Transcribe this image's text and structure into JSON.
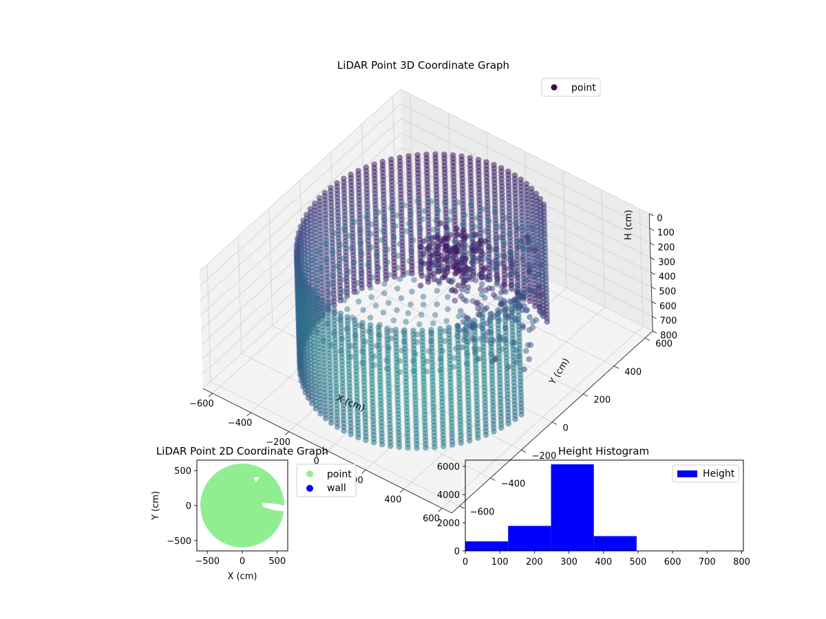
{
  "chart_data": [
    {
      "type": "scatter",
      "subtype": "3d",
      "title": "LiDAR Point 3D Coordinate Graph",
      "xlabel": "X (cm)",
      "ylabel": "Y (cm)",
      "zlabel": "H (cm)",
      "xlim": [
        -650,
        650
      ],
      "ylim": [
        -650,
        650
      ],
      "zlim": [
        0,
        800
      ],
      "z_inverted": true,
      "x_ticks": [
        "−600",
        "−400",
        "−200",
        "0",
        "200",
        "400",
        "600"
      ],
      "y_ticks": [
        "−600",
        "−400",
        "−200",
        "0",
        "200",
        "400",
        "600"
      ],
      "z_ticks": [
        "0",
        "100",
        "200",
        "300",
        "400",
        "500",
        "600",
        "700",
        "800"
      ],
      "grid": true,
      "legend": {
        "placement": "top-right",
        "entries": [
          {
            "label": "point",
            "color": "#440154"
          }
        ]
      },
      "colormap": "viridis",
      "scene": {
        "wall_radius_cm": 520,
        "wall_height_range_cm": [
          0,
          800
        ],
        "floor_height_cm": 300,
        "opening_angle_range_deg": [
          0,
          60
        ]
      }
    },
    {
      "type": "scatter",
      "title": "LiDAR Point 2D Coordinate Graph",
      "xlabel": "X (cm)",
      "ylabel": "Y (cm)",
      "xlim": [
        -650,
        650
      ],
      "ylim": [
        -650,
        650
      ],
      "x_ticks": [
        -500,
        0,
        500
      ],
      "y_ticks": [
        -500,
        0,
        500
      ],
      "legend": {
        "placement": "outside-right",
        "entries": [
          {
            "label": "point",
            "color": "#90ee90"
          },
          {
            "label": "wall",
            "color": "#0000ff"
          }
        ]
      },
      "series": [
        {
          "name": "point",
          "color": "#90ee90",
          "shape": "filled disc",
          "radius_cm": 600
        },
        {
          "name": "wall",
          "color": "#0000ff",
          "points": []
        }
      ]
    },
    {
      "type": "bar",
      "subtype": "histogram",
      "title": "Height Histogram",
      "xlim": [
        0,
        805
      ],
      "ylim": [
        0,
        6450
      ],
      "x_ticks": [
        0,
        100,
        200,
        300,
        400,
        500,
        600,
        700,
        800
      ],
      "y_ticks": [
        0,
        2000,
        4000,
        6000
      ],
      "legend": {
        "placement": "top-right",
        "entries": [
          {
            "label": "Height",
            "color": "#0000ff"
          }
        ]
      },
      "bins": [
        {
          "x0": 0,
          "x1": 124,
          "count": 680
        },
        {
          "x0": 124,
          "x1": 248,
          "count": 1780
        },
        {
          "x0": 248,
          "x1": 372,
          "count": 6150
        },
        {
          "x0": 372,
          "x1": 496,
          "count": 1050
        },
        {
          "x0": 496,
          "x1": 620,
          "count": 0
        },
        {
          "x0": 620,
          "x1": 744,
          "count": 0
        }
      ],
      "series": [
        {
          "name": "Height",
          "color": "#0000ff"
        }
      ]
    }
  ]
}
